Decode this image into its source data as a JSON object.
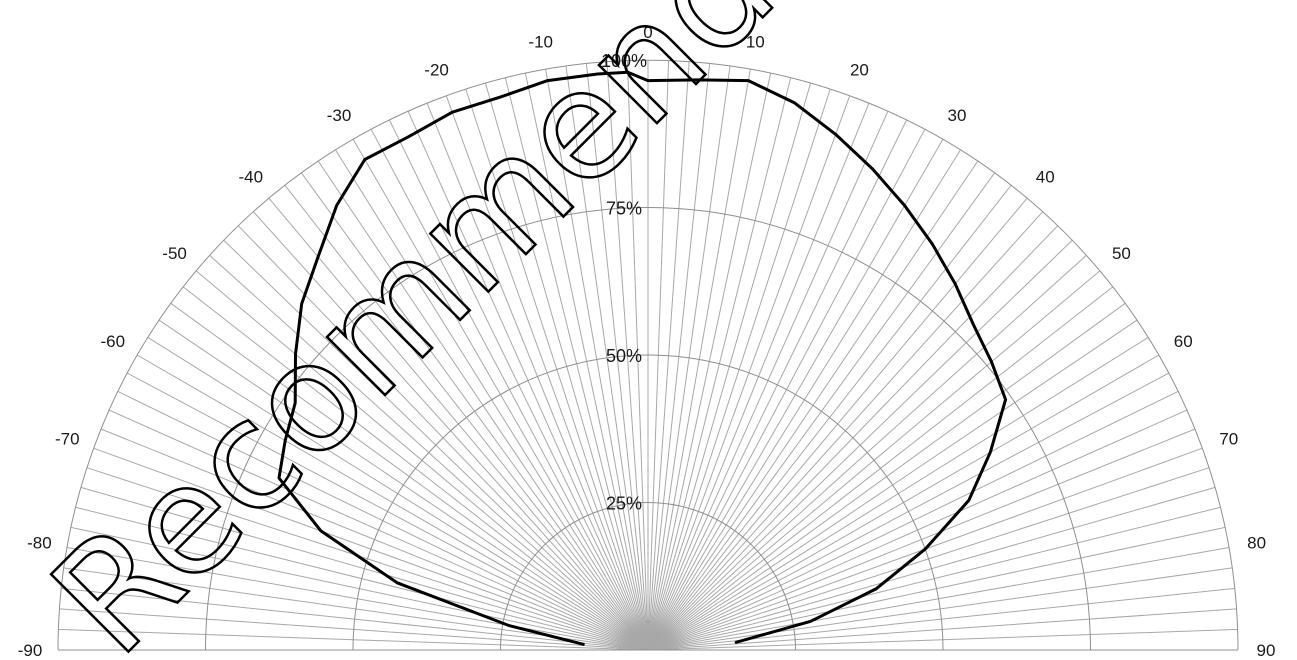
{
  "chart_data": {
    "type": "polar-line",
    "angle_range": [
      -90,
      90
    ],
    "angle_ticks": [
      -90,
      -80,
      -70,
      -60,
      -50,
      -40,
      -30,
      -20,
      -10,
      0,
      10,
      20,
      30,
      40,
      50,
      60,
      70,
      80,
      90
    ],
    "radial_ticks": [
      {
        "value": 25,
        "label": "25%"
      },
      {
        "value": 50,
        "label": "50%"
      },
      {
        "value": 75,
        "label": "75%"
      },
      {
        "value": 100,
        "label": "100%"
      }
    ],
    "spoke_step_deg": 2,
    "grid": true,
    "series": [
      {
        "color": "#000000",
        "angles": [
          -85,
          -80,
          -75,
          -70,
          -65,
          -60,
          -55,
          -50,
          -45,
          -40,
          -35,
          -30,
          -25,
          -20,
          -15,
          -10,
          -5,
          -2,
          0,
          5,
          10,
          15,
          20,
          25,
          30,
          35,
          40,
          45,
          50,
          55,
          60,
          65,
          70,
          75,
          80,
          85
        ],
        "values": [
          11,
          24,
          44,
          59,
          69,
          71,
          73,
          78,
          83,
          87,
          92,
          96,
          96,
          97,
          97,
          98,
          98,
          98,
          96.5,
          97,
          98,
          96,
          93,
          90,
          87,
          84,
          81,
          78,
          76,
          74,
          67,
          60,
          50,
          40,
          28,
          15
        ]
      }
    ],
    "watermark": "Recommended fo"
  }
}
